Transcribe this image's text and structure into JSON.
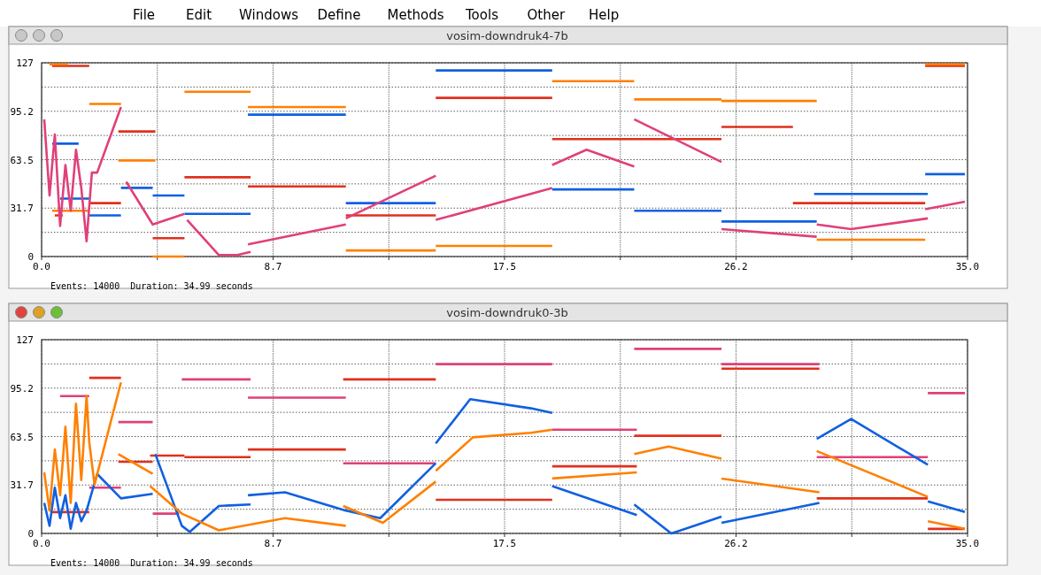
{
  "chart_data": [
    {
      "type": "line",
      "title": "vosim-downdruk4-7b",
      "annotations": [
        "Events: 14000  Duration: 34.99 seconds",
        "File",
        "Edit",
        "Windows",
        "Define",
        "Methods",
        "Tools",
        "Other",
        "Help"
      ],
      "xlim": [
        0,
        35
      ],
      "ylim": [
        0,
        127
      ],
      "xticks": [
        {
          "value": 0,
          "label": "0.0"
        },
        {
          "value": 4.375,
          "label": null
        },
        {
          "value": 8.75,
          "label": "8.7"
        },
        {
          "value": 13.125,
          "label": null
        },
        {
          "value": 17.5,
          "label": "17.5"
        },
        {
          "value": 21.875,
          "label": null
        },
        {
          "value": 26.25,
          "label": "26.2"
        },
        {
          "value": 30.625,
          "label": null
        },
        {
          "value": 35,
          "label": "35.0"
        }
      ],
      "yticks": [
        0,
        {
          "value": 15.875,
          "label": null
        },
        {
          "value": 31.75,
          "label": "31.7"
        },
        {
          "value": 47.625,
          "label": null
        },
        63.5,
        {
          "value": 79.375,
          "label": null
        },
        {
          "value": 95.25,
          "label": "95.2"
        },
        {
          "value": 111.125,
          "label": null
        },
        127
      ],
      "grid": true,
      "series": [
        {
          "color": "#e0301e",
          "x": [
            0.4,
            1.8,
            null,
            0.5,
            0.8,
            null,
            1.8,
            3.0,
            null,
            2.9,
            4.3,
            null,
            4.2,
            5.4,
            null,
            5.4,
            7.9,
            null,
            7.8,
            11.5,
            null,
            11.5,
            14.9,
            null,
            14.9,
            19.3,
            null,
            19.3,
            25.7,
            null,
            25.7,
            28.4,
            null,
            28.4,
            33.4,
            null,
            33.4,
            34.9
          ],
          "values": [
            125,
            125,
            null,
            27,
            27,
            null,
            35,
            35,
            null,
            82,
            82,
            null,
            12,
            12,
            null,
            52,
            52,
            null,
            46,
            46,
            null,
            27,
            27,
            null,
            104,
            104,
            null,
            77,
            77,
            null,
            85,
            85,
            null,
            35,
            35,
            null,
            125,
            125
          ]
        },
        {
          "color": "#ff8000",
          "x": [
            0.3,
            1.0,
            null,
            0.4,
            1.8,
            null,
            1.8,
            3.0,
            null,
            2.9,
            4.3,
            null,
            4.2,
            5.4,
            null,
            5.4,
            7.9,
            null,
            7.8,
            11.5,
            null,
            11.5,
            14.9,
            null,
            14.9,
            19.3,
            null,
            19.3,
            22.4,
            null,
            22.4,
            25.7,
            null,
            25.7,
            29.3,
            null,
            29.3,
            33.4,
            null,
            33.4,
            34.9
          ],
          "values": [
            126,
            126,
            null,
            30,
            30,
            null,
            100,
            100,
            null,
            63,
            63,
            null,
            0,
            0,
            null,
            108,
            108,
            null,
            98,
            98,
            null,
            4,
            4,
            null,
            7,
            7,
            null,
            115,
            115,
            null,
            103,
            103,
            null,
            102,
            102,
            null,
            11,
            11,
            null,
            126,
            126
          ]
        },
        {
          "color": "#1060e0",
          "x": [
            0.4,
            1.4,
            null,
            0.7,
            1.8,
            null,
            1.8,
            3.0,
            null,
            3.0,
            4.2,
            null,
            4.2,
            5.4,
            null,
            5.4,
            7.9,
            null,
            7.8,
            11.5,
            null,
            11.5,
            14.9,
            null,
            14.9,
            19.3,
            null,
            19.3,
            22.4,
            null,
            22.4,
            25.7,
            null,
            25.7,
            29.3,
            null,
            29.2,
            33.5,
            null,
            33.4,
            34.9
          ],
          "values": [
            74,
            74,
            null,
            38,
            38,
            null,
            27,
            27,
            null,
            45,
            45,
            null,
            40,
            40,
            null,
            28,
            28,
            null,
            93,
            93,
            null,
            35,
            35,
            null,
            122,
            122,
            null,
            44,
            44,
            null,
            30,
            30,
            null,
            23,
            23,
            null,
            41,
            41,
            null,
            54,
            54
          ]
        },
        {
          "color": "#e0407a",
          "x": [
            0.1,
            0.3,
            0.5,
            0.7,
            0.9,
            1.1,
            1.3,
            1.5,
            1.7,
            1.9,
            2.1,
            3.0,
            null,
            3.2,
            4.2,
            5.4,
            null,
            5.5,
            6.7,
            7.4,
            7.9,
            null,
            7.8,
            11.5,
            null,
            11.5,
            14.9,
            null,
            14.9,
            19.3,
            null,
            19.3,
            20.6,
            22.4,
            null,
            22.4,
            25.7,
            null,
            25.7,
            29.3,
            null,
            29.3,
            30.6,
            33.5,
            null,
            33.4,
            34.9
          ],
          "values": [
            90,
            40,
            80,
            20,
            60,
            30,
            70,
            45,
            10,
            55,
            55,
            98,
            null,
            49,
            21,
            28,
            null,
            24,
            1,
            1,
            3,
            null,
            8,
            21,
            null,
            25,
            53,
            null,
            24,
            45,
            null,
            60,
            70,
            59,
            null,
            90,
            62,
            null,
            18,
            13,
            null,
            21,
            18,
            25,
            null,
            31,
            36
          ]
        }
      ]
    },
    {
      "type": "line",
      "title": "vosim-downdruk0-3b",
      "annotations": [
        "Events: 14000  Duration: 34.99 seconds"
      ],
      "xlim": [
        0,
        35
      ],
      "ylim": [
        0,
        127
      ],
      "xticks": [
        {
          "value": 0,
          "label": "0.0"
        },
        {
          "value": 4.375,
          "label": null
        },
        {
          "value": 8.75,
          "label": "8.7"
        },
        {
          "value": 13.125,
          "label": null
        },
        {
          "value": 17.5,
          "label": "17.5"
        },
        {
          "value": 21.875,
          "label": null
        },
        {
          "value": 26.25,
          "label": "26.2"
        },
        {
          "value": 30.625,
          "label": null
        },
        {
          "value": 35,
          "label": "35.0"
        }
      ],
      "yticks": [
        0,
        {
          "value": 15.875,
          "label": null
        },
        {
          "value": 31.75,
          "label": "31.7"
        },
        {
          "value": 47.625,
          "label": null
        },
        63.5,
        {
          "value": 79.375,
          "label": null
        },
        {
          "value": 95.25,
          "label": "95.2"
        },
        {
          "value": 111.125,
          "label": null
        },
        127
      ],
      "grid": true,
      "series": [
        {
          "color": "#e0301e",
          "x": [
            0.4,
            1.8,
            null,
            1.8,
            3.0,
            null,
            2.9,
            4.2,
            null,
            4.1,
            5.4,
            null,
            5.4,
            7.9,
            null,
            7.8,
            11.5,
            null,
            11.4,
            14.9,
            null,
            14.9,
            19.3,
            null,
            19.3,
            22.5,
            null,
            22.4,
            25.7,
            null,
            25.7,
            29.4,
            null,
            29.3,
            33.5,
            null,
            33.5,
            34.9
          ],
          "values": [
            14,
            14,
            null,
            102,
            102,
            null,
            47,
            47,
            null,
            51,
            51,
            null,
            50,
            50,
            null,
            55,
            55,
            null,
            101,
            101,
            null,
            22,
            22,
            null,
            44,
            44,
            null,
            64,
            64,
            null,
            108,
            108,
            null,
            23,
            23,
            null,
            3,
            3
          ]
        },
        {
          "color": "#e0407a",
          "x": [
            0.7,
            1.8,
            null,
            1.8,
            3.0,
            null,
            2.9,
            4.2,
            null,
            4.2,
            5.2,
            null,
            5.3,
            7.9,
            null,
            7.8,
            11.5,
            null,
            11.4,
            14.9,
            null,
            14.9,
            19.3,
            null,
            19.3,
            22.5,
            null,
            22.4,
            25.7,
            null,
            25.7,
            29.4,
            null,
            29.3,
            33.5,
            null,
            33.5,
            34.9
          ],
          "values": [
            90,
            90,
            null,
            30,
            30,
            null,
            73,
            73,
            null,
            13,
            13,
            null,
            101,
            101,
            null,
            89,
            89,
            null,
            46,
            46,
            null,
            111,
            111,
            null,
            68,
            68,
            null,
            121,
            121,
            null,
            111,
            111,
            null,
            50,
            50,
            null,
            92,
            92
          ]
        },
        {
          "color": "#1060e0",
          "x": [
            0.1,
            0.3,
            0.5,
            0.7,
            0.9,
            1.1,
            1.3,
            1.5,
            1.7,
            1.8,
            2.1,
            3.0,
            4.2,
            null,
            4.3,
            5.3,
            5.6,
            6.7,
            7.9,
            null,
            7.8,
            9.2,
            11.5,
            12.8,
            14.9,
            null,
            14.9,
            16.2,
            18.5,
            19.3,
            null,
            19.3,
            22.5,
            null,
            22.4,
            23.8,
            25.7,
            null,
            25.7,
            29.4,
            null,
            29.3,
            30.6,
            33.5,
            null,
            33.5,
            34.9
          ],
          "values": [
            20,
            5,
            30,
            10,
            25,
            3,
            20,
            8,
            15,
            21,
            39,
            23,
            26,
            null,
            52,
            5,
            1,
            18,
            19,
            null,
            25,
            27,
            15,
            10,
            46,
            null,
            59,
            88,
            82,
            79,
            null,
            31,
            12,
            null,
            19,
            0,
            11,
            null,
            7,
            20,
            null,
            62,
            75,
            45,
            null,
            21,
            14
          ]
        },
        {
          "color": "#ff8000",
          "x": [
            0.1,
            0.3,
            0.5,
            0.7,
            0.9,
            1.1,
            1.3,
            1.5,
            1.7,
            1.8,
            2.0,
            3.0,
            null,
            2.9,
            4.2,
            null,
            4.1,
            5.3,
            6.7,
            9.2,
            11.5,
            null,
            11.4,
            12.9,
            14.9,
            null,
            14.9,
            16.3,
            18.5,
            19.3,
            null,
            19.3,
            22.5,
            null,
            22.4,
            23.7,
            25.7,
            null,
            25.7,
            29.4,
            null,
            29.3,
            33.5,
            null,
            33.5,
            34.9
          ],
          "values": [
            40,
            15,
            55,
            25,
            70,
            20,
            85,
            35,
            90,
            60,
            32,
            99,
            null,
            52,
            39,
            null,
            31,
            13,
            2,
            10,
            5,
            null,
            18,
            7,
            34,
            null,
            41,
            63,
            66,
            68,
            null,
            36,
            40,
            null,
            52,
            57,
            49,
            null,
            36,
            27,
            null,
            54,
            24,
            null,
            8,
            3
          ]
        }
      ]
    }
  ]
}
